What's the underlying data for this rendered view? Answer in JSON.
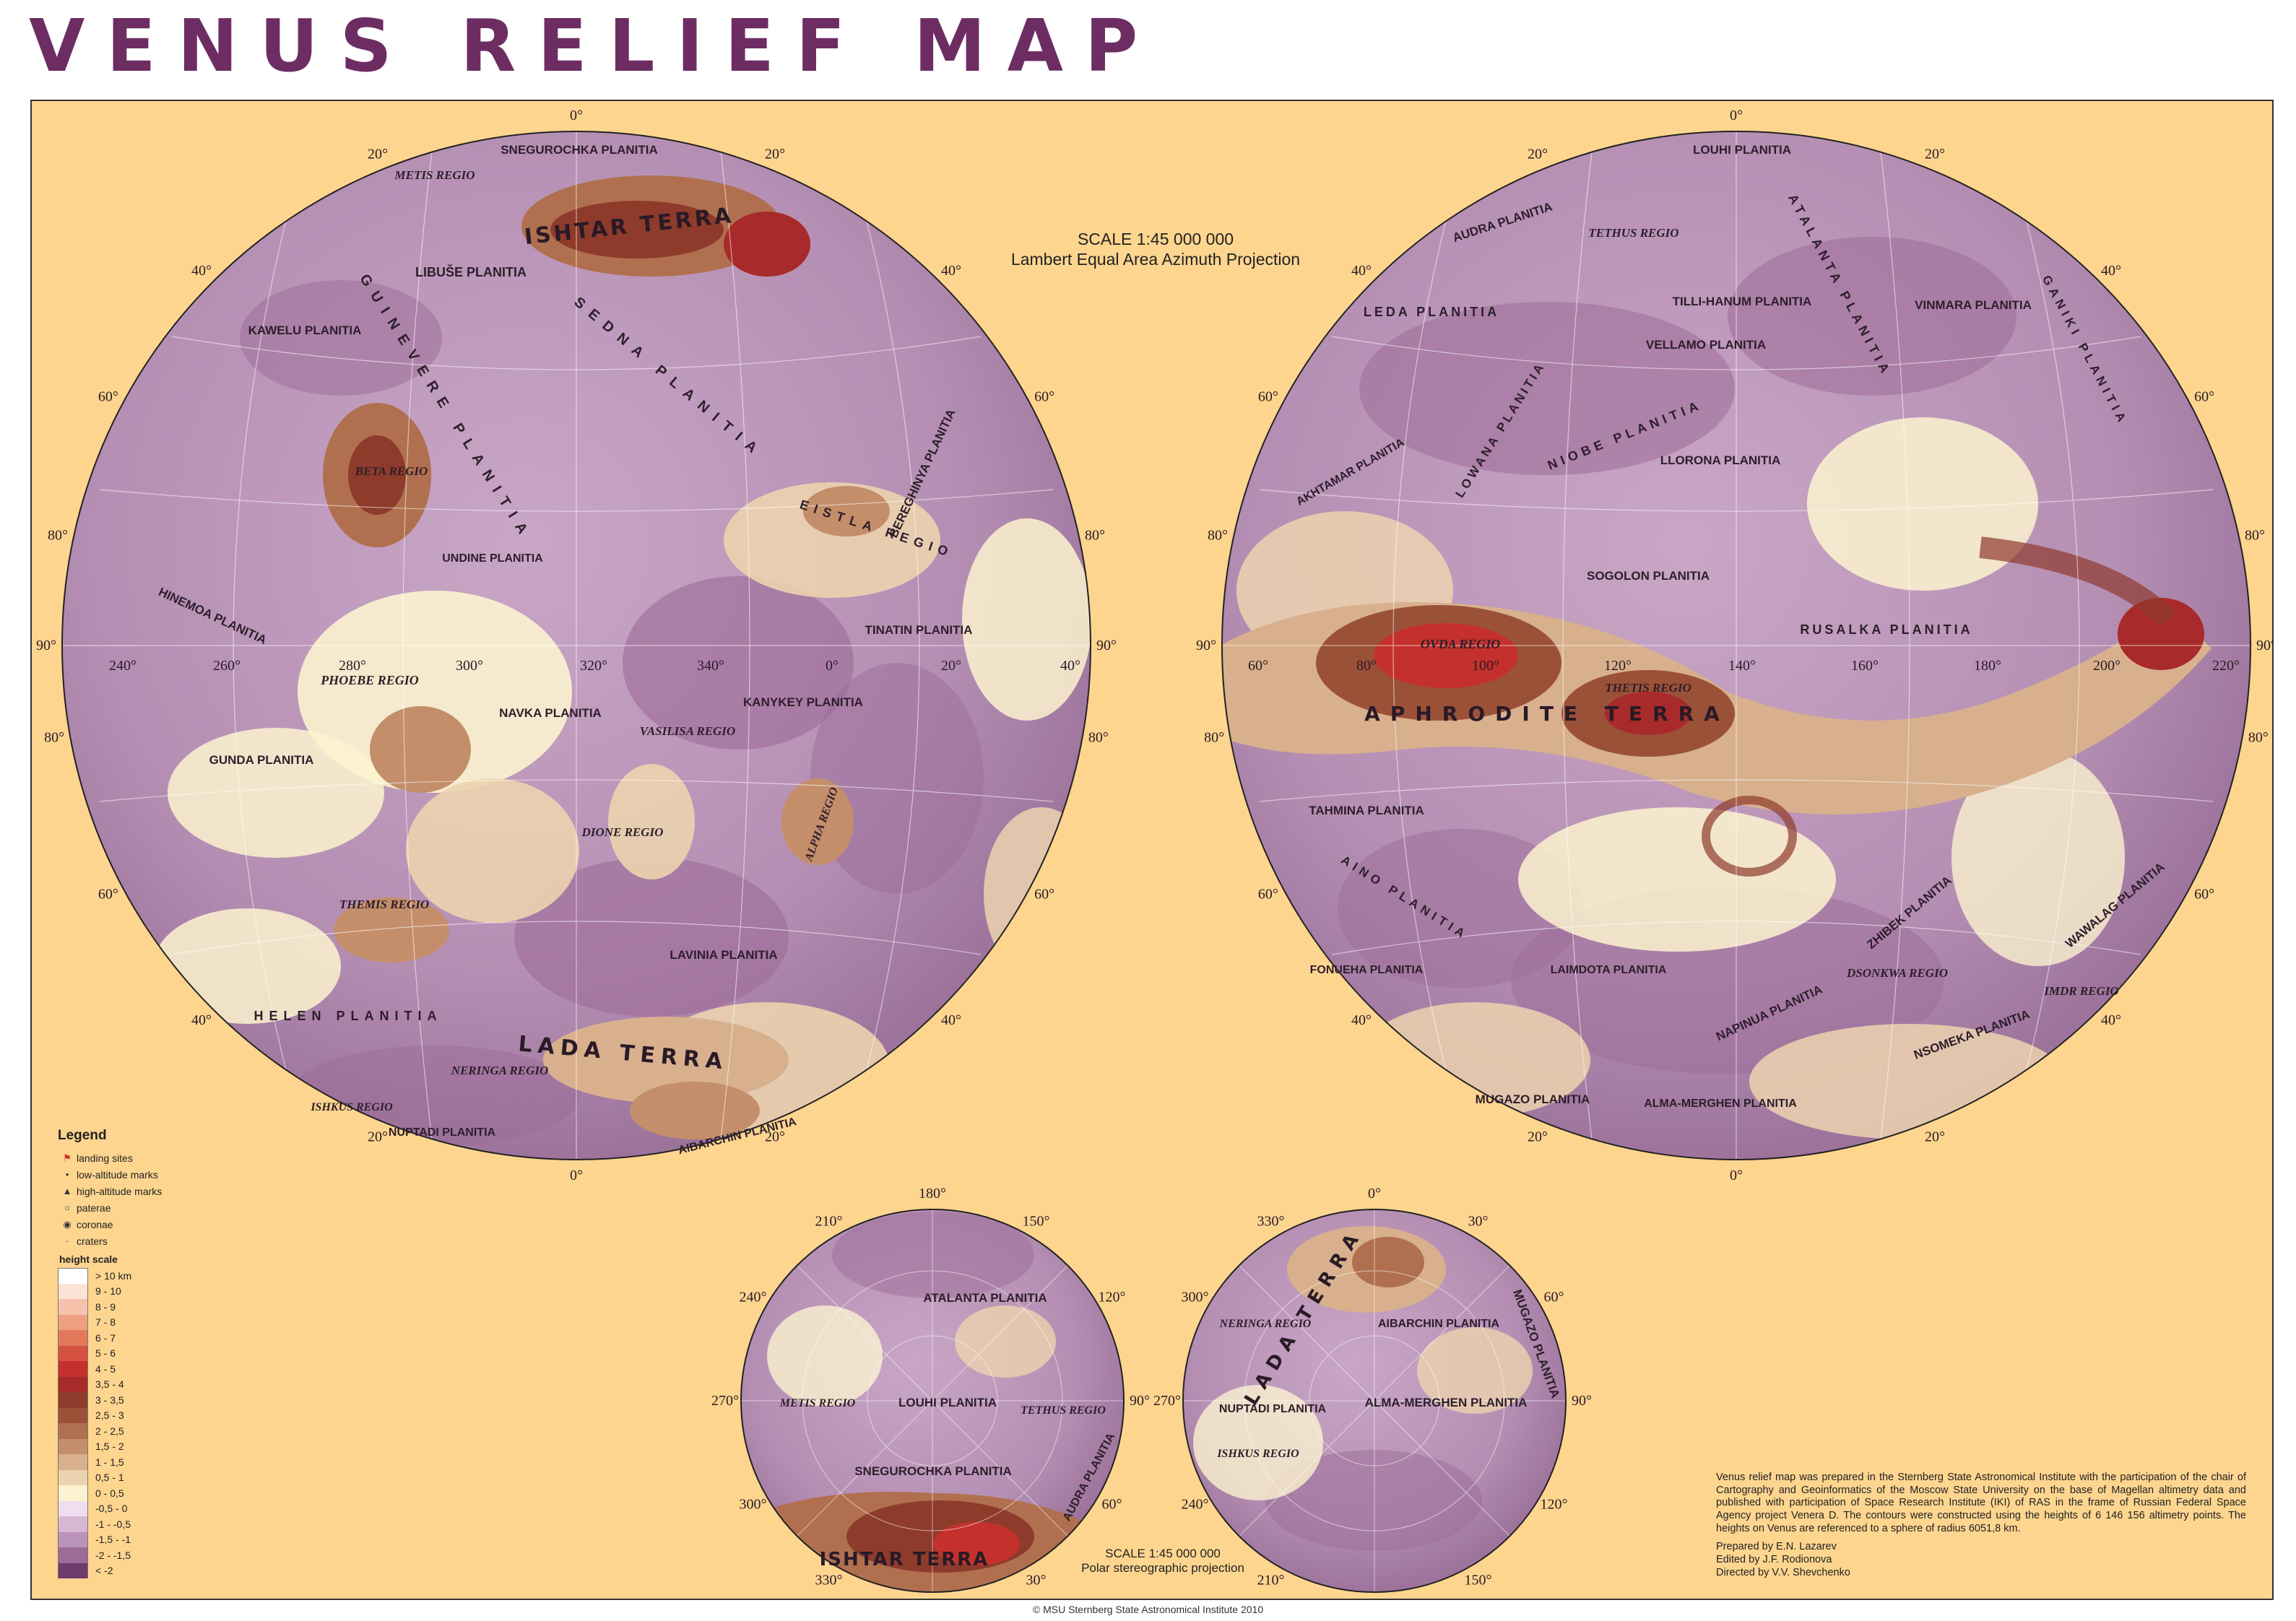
{
  "title": "VENUS RELIEF MAP",
  "scale_main": {
    "line1": "SCALE 1:45 000 000",
    "line2": "Lambert Equal Area Azimuth Projection"
  },
  "scale_polar": {
    "line1": "SCALE 1:45 000 000",
    "line2": "Polar stereographic projection"
  },
  "legend": {
    "title": "Legend",
    "symbols": [
      {
        "icon": "flag-icon",
        "label": "landing sites"
      },
      {
        "icon": "dot-icon",
        "label": "low-altitude marks"
      },
      {
        "icon": "triangle-icon",
        "label": "high-altitude marks"
      },
      {
        "icon": "circle-icon",
        "label": "paterae"
      },
      {
        "icon": "ring-icon",
        "label": "coronae"
      },
      {
        "icon": "small-dot-icon",
        "label": "craters"
      }
    ],
    "height_scale_title": "height scale",
    "height_scale": [
      {
        "label": "> 10 km",
        "color": "#ffffff"
      },
      {
        "label": "9 - 10",
        "color": "#fbe3d6"
      },
      {
        "label": "8 - 9",
        "color": "#f6c2ac"
      },
      {
        "label": "7 - 8",
        "color": "#ee9f80"
      },
      {
        "label": "6 - 7",
        "color": "#e3795b"
      },
      {
        "label": "5 - 6",
        "color": "#d65240"
      },
      {
        "label": "4 - 5",
        "color": "#c4312c"
      },
      {
        "label": "3,5 - 4",
        "color": "#a82a2a"
      },
      {
        "label": "3 - 3,5",
        "color": "#8e3b2c"
      },
      {
        "label": "2,5 - 3",
        "color": "#9b5138"
      },
      {
        "label": "2 - 2,5",
        "color": "#b0704f"
      },
      {
        "label": "1,5 - 2",
        "color": "#c48e6b"
      },
      {
        "label": "1 - 1,5",
        "color": "#d8b08d"
      },
      {
        "label": "0,5 - 1",
        "color": "#ecd3af"
      },
      {
        "label": "0 - 0,5",
        "color": "#fbf3cf"
      },
      {
        "label": "-0,5 - 0",
        "color": "#f2dcef"
      },
      {
        "label": "-1 - -0,5",
        "color": "#d7b8d3"
      },
      {
        "label": "-1,5 - -1",
        "color": "#bb93b8"
      },
      {
        "label": "-2 - -1,5",
        "color": "#9c6b97"
      },
      {
        "label": "< -2",
        "color": "#6e3b6a"
      }
    ]
  },
  "hemisphere_west": {
    "regions": [
      "SNEGUROCHKA PLANITIA",
      "METIS REGIO",
      "ISHTAR TERRA",
      "LIBUŠE PLANITIA",
      "KAWELU PLANITIA",
      "GUINEVERE PLANITIA",
      "SEDNA PLANITIA",
      "BETA REGIO",
      "UNDINE PLANITIA",
      "HINEMOA PLANITIA",
      "PHOEBE REGIO",
      "GUNDA PLANITIA",
      "NAVKA PLANITIA",
      "VASILISA REGIO",
      "KANYKEY PLANITIA",
      "TINATIN PLANITIA",
      "BEREGHINYA PLANITIA",
      "EISTLA REGIO",
      "ALPHA REGIO",
      "DIONE REGIO",
      "THEMIS REGIO",
      "LAVINIA PLANITIA",
      "HELEN PLANITIA",
      "LADA TERRA",
      "NERINGA REGIO",
      "ISHKUS REGIO",
      "NUPTADI PLANITIA",
      "AIBARCHIN PLANITIA"
    ],
    "longitudes": [
      "240°",
      "260°",
      "280°",
      "300°",
      "320°",
      "340°",
      "0°",
      "20°",
      "40°"
    ],
    "edge_labels": [
      "90°",
      "80°",
      "60°",
      "40°",
      "20°",
      "0°",
      "20°",
      "40°",
      "60°",
      "80°",
      "90°",
      "80°",
      "60°",
      "40°",
      "20°",
      "0°",
      "20°",
      "40°",
      "60°",
      "80°"
    ]
  },
  "hemisphere_east": {
    "regions": [
      "LOUHI PLANITIA",
      "AUDRA PLANITIA",
      "TETHUS REGIO",
      "ATALANTA PLANITIA",
      "VINMARA PLANITIA",
      "LEDA PLANITIA",
      "TILLI-HANUM PLANITIA",
      "VELLAMO PLANITIA",
      "GANIKI PLANITIA",
      "AKHTAMAR PLANITIA",
      "LOWANA PLANITIA",
      "NIOBE PLANITIA",
      "LLORONA PLANITIA",
      "SOGOLON PLANITIA",
      "OVDA REGIO",
      "RUSALKA PLANITIA",
      "THETIS REGIO",
      "APHRODITE TERRA",
      "TAHMINA PLANITIA",
      "AINO PLANITIA",
      "FONUEHA PLANITIA",
      "LAIMDOTA PLANITIA",
      "ZHIBEK PLANITIA",
      "DSONKWA REGIO",
      "WAWALAG PLANITIA",
      "IMDR REGIO",
      "NAPINUA PLANITIA",
      "NSOMEKA PLANITIA",
      "MUGAZO PLANITIA",
      "ALMA-MERGHEN PLANITIA"
    ],
    "longitudes": [
      "60°",
      "80°",
      "100°",
      "120°",
      "140°",
      "160°",
      "180°",
      "200°",
      "220°"
    ],
    "edge_labels": [
      "90°",
      "80°",
      "60°",
      "40°",
      "20°",
      "0°",
      "20°",
      "40°",
      "60°",
      "80°",
      "90°",
      "80°",
      "60°",
      "40°",
      "20°",
      "0°",
      "20°",
      "40°",
      "60°",
      "80°"
    ]
  },
  "north_pole": {
    "regions": [
      "ATALANTA PLANITIA",
      "METIS REGIO",
      "LOUHI PLANITIA",
      "TETHUS REGIO",
      "SNEGUROCHKA PLANITIA",
      "ISHTAR TERRA",
      "AUDRA PLANITIA"
    ],
    "labels": [
      "180°",
      "150°",
      "120°",
      "90°",
      "60°",
      "30°",
      "0°",
      "330°",
      "300°",
      "270°",
      "240°",
      "210°"
    ]
  },
  "south_pole": {
    "regions": [
      "LADA TERRA",
      "NERINGA REGIO",
      "AIBARCHIN PLANITIA",
      "MUGAZO PLANITIA",
      "NUPTADI PLANITIA",
      "ALMA-MERGHEN PLANITIA",
      "ISHKUS REGIO"
    ],
    "labels": [
      "0°",
      "30°",
      "60°",
      "90°",
      "120°",
      "150°",
      "180°",
      "210°",
      "240°",
      "270°",
      "300°",
      "330°"
    ]
  },
  "credits": {
    "text": "Venus relief map was prepared in the Sternberg State Astronomical Institute with the participation of the chair of Cartography and Geoinformatics of the Moscow State University on the base of Magellan altimetry data and published with participation of Space Research Institute (IKI) of RAS in the frame of Russian Federal Space Agency project Venera D. The contours were constructed using the heights of 6 146 156 altimetry points. The heights on Venus are referenced to a sphere of radius 6051,8 km.",
    "prepared": "Prepared by E.N. Lazarev",
    "edited": "Edited by J.F. Rodionova",
    "directed": "Directed by V.V. Shevchenko"
  },
  "copyright": "© MSU Sternberg State Astronomical Institute 2010",
  "colors": {
    "background": "#fdd58f",
    "title": "#6d2d63",
    "lowland": "#b892b5",
    "highland": "#9b5138",
    "peak": "#c4312c"
  }
}
